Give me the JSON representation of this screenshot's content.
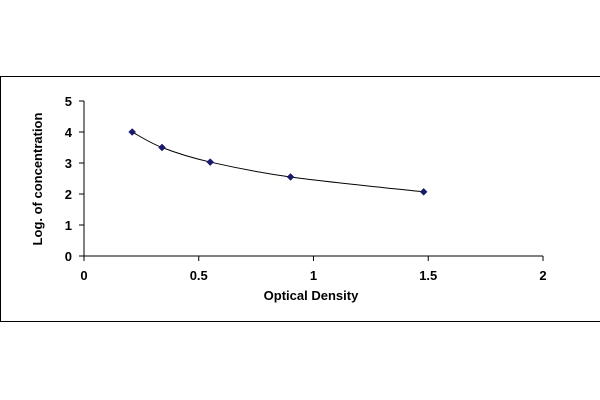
{
  "chart_data": {
    "type": "scatter",
    "title": "",
    "xlabel": "Optical Density",
    "ylabel": "Log. of concentration",
    "xlim": [
      0,
      2
    ],
    "ylim": [
      0,
      5
    ],
    "x_ticks": [
      0,
      0.5,
      1,
      1.5,
      2
    ],
    "x_tick_labels": [
      "0",
      "0.5",
      "1",
      "1.5",
      "2"
    ],
    "y_ticks": [
      0,
      1,
      2,
      3,
      4,
      5
    ],
    "y_tick_labels": [
      "0",
      "1",
      "2",
      "3",
      "4",
      "5"
    ],
    "grid": false,
    "legend": "none",
    "series": [
      {
        "marker": "diamond",
        "color": "#1a1a6e",
        "line": "smooth",
        "line_color": "#000000",
        "x": [
          0.21,
          0.34,
          0.55,
          0.9,
          1.48
        ],
        "y": [
          4.0,
          3.5,
          3.03,
          2.55,
          2.07
        ]
      }
    ]
  }
}
